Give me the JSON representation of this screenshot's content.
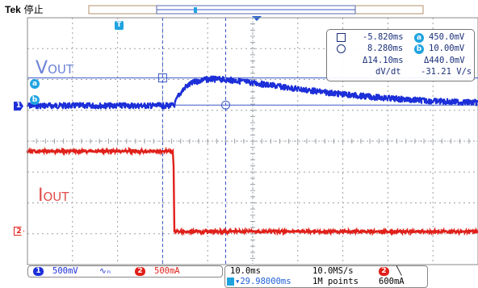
{
  "brand": {
    "logo": "Tek",
    "status": "停止"
  },
  "trigger_marker": "T",
  "colors": {
    "ch1": "#1c2fd8",
    "ch2": "#e0201a",
    "grid": "#9aa0a8",
    "cursor": "#3a58c8",
    "badge": "#1fa3e0"
  },
  "labels": {
    "vout_main": "V",
    "vout_sub": "OUT",
    "iout_main": "I",
    "iout_sub": "OUT"
  },
  "ref_markers": {
    "a": "a",
    "b": "b",
    "ch1": "1",
    "ch2": "2"
  },
  "cursor_readout": {
    "t1": "-5.820ms",
    "a_val": "450.0mV",
    "t2": "8.280ms",
    "b_val": "10.00mV",
    "dt": "Δ14.10ms",
    "dv": "Δ440.0mV",
    "slope_label": "dV/dt",
    "slope_val": "-31.21 V/s"
  },
  "bottom": {
    "ch1_num": "1",
    "ch1_scale": "500mV",
    "coupling": "∿ₙ",
    "ch2_num": "2",
    "ch2_scale": "500mA",
    "timebase": "10.0ms",
    "sample_rate": "10.0MS/s",
    "trig_ch": "2",
    "trig_slope": "╲",
    "trig_pos": "▾29.98000ms",
    "record": "1M points",
    "trig_level": "600mA"
  },
  "chart_data": {
    "type": "line",
    "title": "",
    "xlabel": "",
    "ylabel": "",
    "x_unit": "ms",
    "xlim": [
      -50,
      50
    ],
    "grid": true,
    "series": [
      {
        "name": "VOUT",
        "scale_per_div": "500mV",
        "x": [
          -50,
          -20,
          -17.5,
          -16.5,
          -15,
          -13,
          -11,
          -9,
          -7,
          -5,
          -2,
          0,
          5,
          10,
          15,
          20,
          25,
          30,
          35,
          40,
          45,
          50
        ],
        "y": [
          0,
          0,
          0,
          0.16,
          0.3,
          0.38,
          0.42,
          0.43,
          0.425,
          0.415,
          0.39,
          0.37,
          0.32,
          0.27,
          0.225,
          0.185,
          0.15,
          0.12,
          0.095,
          0.075,
          0.06,
          0.05
        ]
      },
      {
        "name": "IOUT",
        "scale_per_div": "500mA",
        "x": [
          -50,
          -17.6,
          -17.4,
          50
        ],
        "y": [
          1.3,
          1.3,
          0,
          0
        ]
      }
    ]
  }
}
